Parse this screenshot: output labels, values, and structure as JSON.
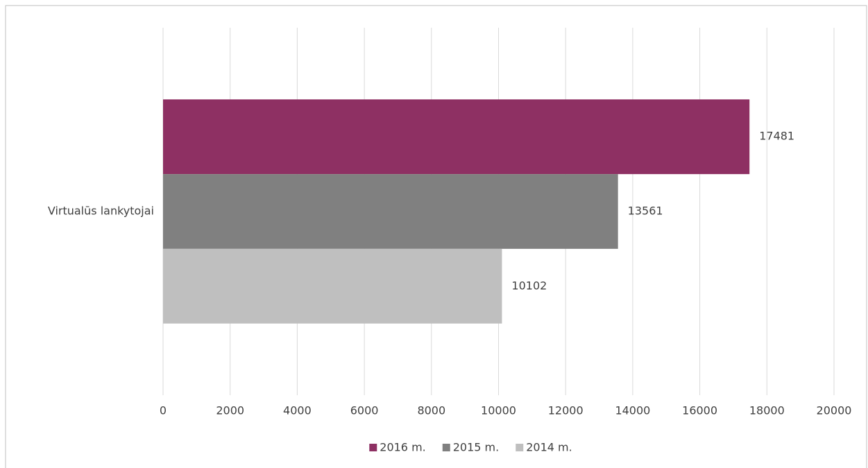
{
  "chart_data": {
    "type": "bar",
    "orientation": "horizontal",
    "categories": [
      "Virtualūs lankytojai"
    ],
    "series": [
      {
        "name": "2016 m.",
        "color": "#8e3063",
        "values": [
          17481
        ]
      },
      {
        "name": "2015 m.",
        "color": "#808080",
        "values": [
          13561
        ]
      },
      {
        "name": "2014 m.",
        "color": "#bfbfbf",
        "values": [
          10102
        ]
      }
    ],
    "xlim": [
      0,
      20000
    ],
    "xticks": [
      0,
      2000,
      4000,
      6000,
      8000,
      10000,
      12000,
      14000,
      16000,
      18000,
      20000
    ],
    "grid": true,
    "legend": "bottom"
  }
}
